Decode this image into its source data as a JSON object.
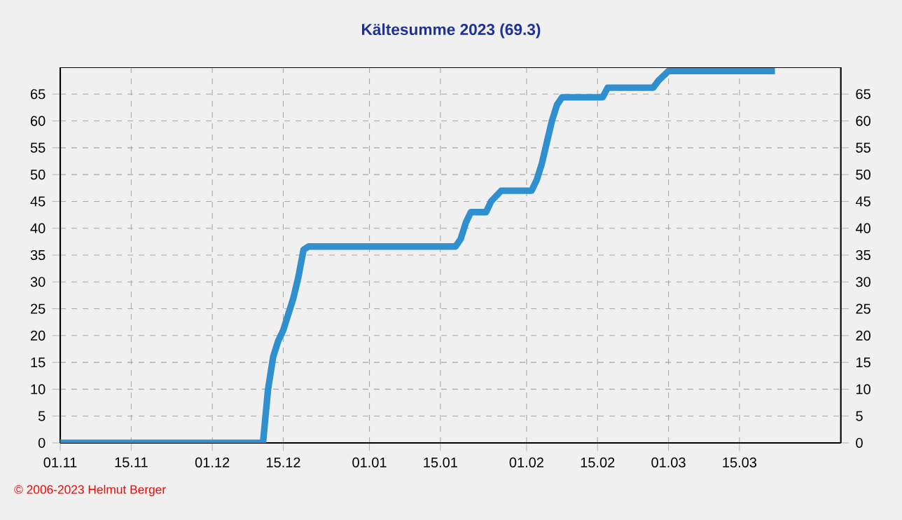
{
  "chart_data": {
    "type": "line",
    "title": "Kältesumme 2023 (69.3)",
    "x": [
      "2022-11-01",
      "2022-12-11",
      "2022-12-12",
      "2022-12-13",
      "2022-12-14",
      "2022-12-15",
      "2022-12-16",
      "2022-12-17",
      "2022-12-18",
      "2022-12-19",
      "2022-12-20",
      "2023-01-18",
      "2023-01-19",
      "2023-01-20",
      "2023-01-21",
      "2023-01-24",
      "2023-01-25",
      "2023-01-27",
      "2023-02-02",
      "2023-02-03",
      "2023-02-04",
      "2023-02-05",
      "2023-02-06",
      "2023-02-07",
      "2023-02-08",
      "2023-02-16",
      "2023-02-17",
      "2023-02-26",
      "2023-02-27",
      "2023-03-01",
      "2023-03-22"
    ],
    "values": [
      0,
      0,
      10,
      16,
      19,
      21,
      24,
      27,
      31,
      36,
      36.6,
      36.6,
      38,
      41,
      43,
      43,
      45,
      47,
      47,
      49,
      52,
      56,
      60,
      63,
      64.4,
      64.4,
      66.2,
      66.2,
      67.5,
      69.3,
      69.3
    ],
    "color": "#2f8fcf",
    "xlim": [
      "2022-11-01",
      "2023-04-04"
    ],
    "xticks": [
      {
        "value": "2022-11-01",
        "label": "01.11"
      },
      {
        "value": "2022-11-15",
        "label": "15.11"
      },
      {
        "value": "2022-12-01",
        "label": "01.12"
      },
      {
        "value": "2022-12-15",
        "label": "15.12"
      },
      {
        "value": "2023-01-01",
        "label": "01.01"
      },
      {
        "value": "2023-01-15",
        "label": "15.01"
      },
      {
        "value": "2023-02-01",
        "label": "01.02"
      },
      {
        "value": "2023-02-15",
        "label": "15.02"
      },
      {
        "value": "2023-03-01",
        "label": "01.03"
      },
      {
        "value": "2023-03-15",
        "label": "15.03"
      }
    ],
    "ylim": [
      0,
      70
    ],
    "yticks": [
      0,
      5,
      10,
      15,
      20,
      25,
      30,
      35,
      40,
      45,
      50,
      55,
      60,
      65
    ],
    "y2lim": [
      0,
      70
    ],
    "y2ticks": [
      0,
      5,
      10,
      15,
      20,
      25,
      30,
      35,
      40,
      45,
      50,
      55,
      60,
      65
    ],
    "grid": true,
    "marker": "none",
    "line_style": "solid",
    "annotations": [
      "© 2006-2023 Helmut Berger"
    ]
  }
}
